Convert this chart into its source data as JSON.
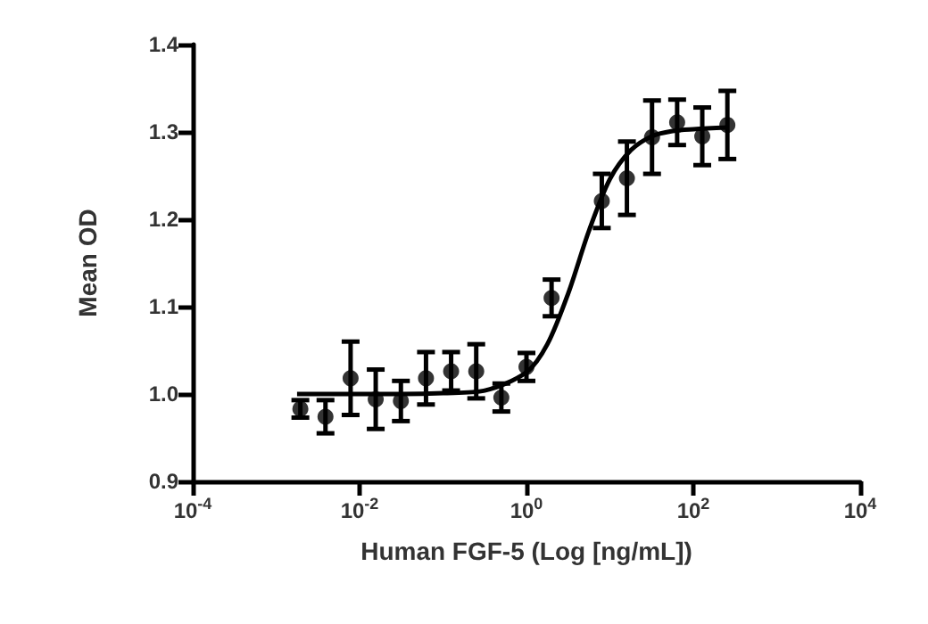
{
  "chart_data": {
    "type": "scatter",
    "xlabel": "Human FGF-5 (Log [ng/mL])",
    "ylabel": "Mean OD",
    "log": "x",
    "grid": false,
    "xlim": [
      0.0001,
      10000
    ],
    "xticks": [
      {
        "value": 0.0001,
        "label": "10$^{-4}$"
      },
      {
        "value": 0.01,
        "label": "10$^{-2}$"
      },
      {
        "value": 1,
        "label": "10$^{0}$"
      },
      {
        "value": 100,
        "label": "10$^{2}$"
      },
      {
        "value": 10000,
        "label": "10$^{4}$"
      }
    ],
    "ylim": [
      0.9,
      1.4
    ],
    "yticks": [
      0.9,
      {
        "value": 1,
        "label": "1.0"
      },
      1.1,
      1.2,
      1.3,
      1.4
    ],
    "series": [
      {
        "color": "#000000",
        "marker": "circle",
        "x": [
          0.00195,
          0.0039,
          0.0078,
          0.0156,
          0.03125,
          0.0625,
          0.125,
          0.25,
          0.5,
          1,
          2,
          8,
          16,
          32,
          64,
          128,
          256
        ],
        "values": [
          0.983,
          0.974,
          1.018,
          0.994,
          0.992,
          1.018,
          1.026,
          1.026,
          0.996,
          1.031,
          1.11,
          1.221,
          1.247,
          1.294,
          1.311,
          1.295,
          1.308
        ],
        "errors": [
          0.01,
          0.019,
          0.042,
          0.034,
          0.023,
          0.03,
          0.022,
          0.031,
          0.016,
          0.016,
          0.021,
          0.031,
          0.042,
          0.042,
          0.026,
          0.033,
          0.039
        ]
      },
      {
        "type": "line",
        "color": "#000000",
        "marker": "none",
        "line_style": "solid",
        "x": [
          0.00178,
          0.01,
          0.0316,
          0.1,
          0.316,
          1,
          1.78,
          3.16,
          5.62,
          10,
          17.8,
          31.6,
          56.2,
          100,
          257
        ],
        "values": [
          1.0,
          1.0,
          1.0,
          1.001,
          1.004,
          1.025,
          1.057,
          1.115,
          1.187,
          1.246,
          1.279,
          1.295,
          1.301,
          1.303,
          1.305
        ]
      }
    ]
  }
}
